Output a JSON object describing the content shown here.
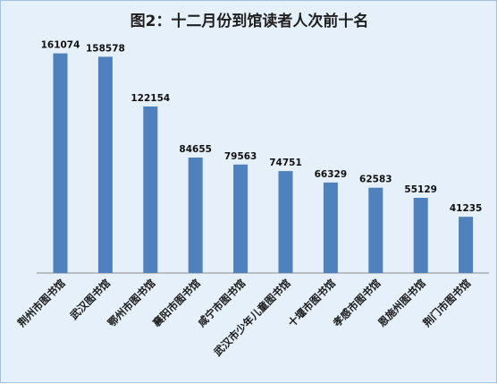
{
  "chart_data": {
    "type": "bar",
    "title": "图2：十二月份到馆读者人次前十名",
    "categories": [
      "荆州市图书馆",
      "武汉图书馆",
      "鄂州市图书馆",
      "襄阳市图书馆",
      "咸宁市图书馆",
      "武汉市少年儿童图书馆",
      "十堰市图书馆",
      "孝感市图书馆",
      "恩施州图书馆",
      "荆门市图书馆"
    ],
    "values": [
      161074,
      158578,
      122154,
      84655,
      79563,
      74751,
      66329,
      62583,
      55129,
      41235
    ],
    "ylim": [
      0,
      170000
    ],
    "bar_color": "#4f81bd",
    "background_color": "#e6f0fa",
    "grid": false,
    "legend": "none"
  }
}
